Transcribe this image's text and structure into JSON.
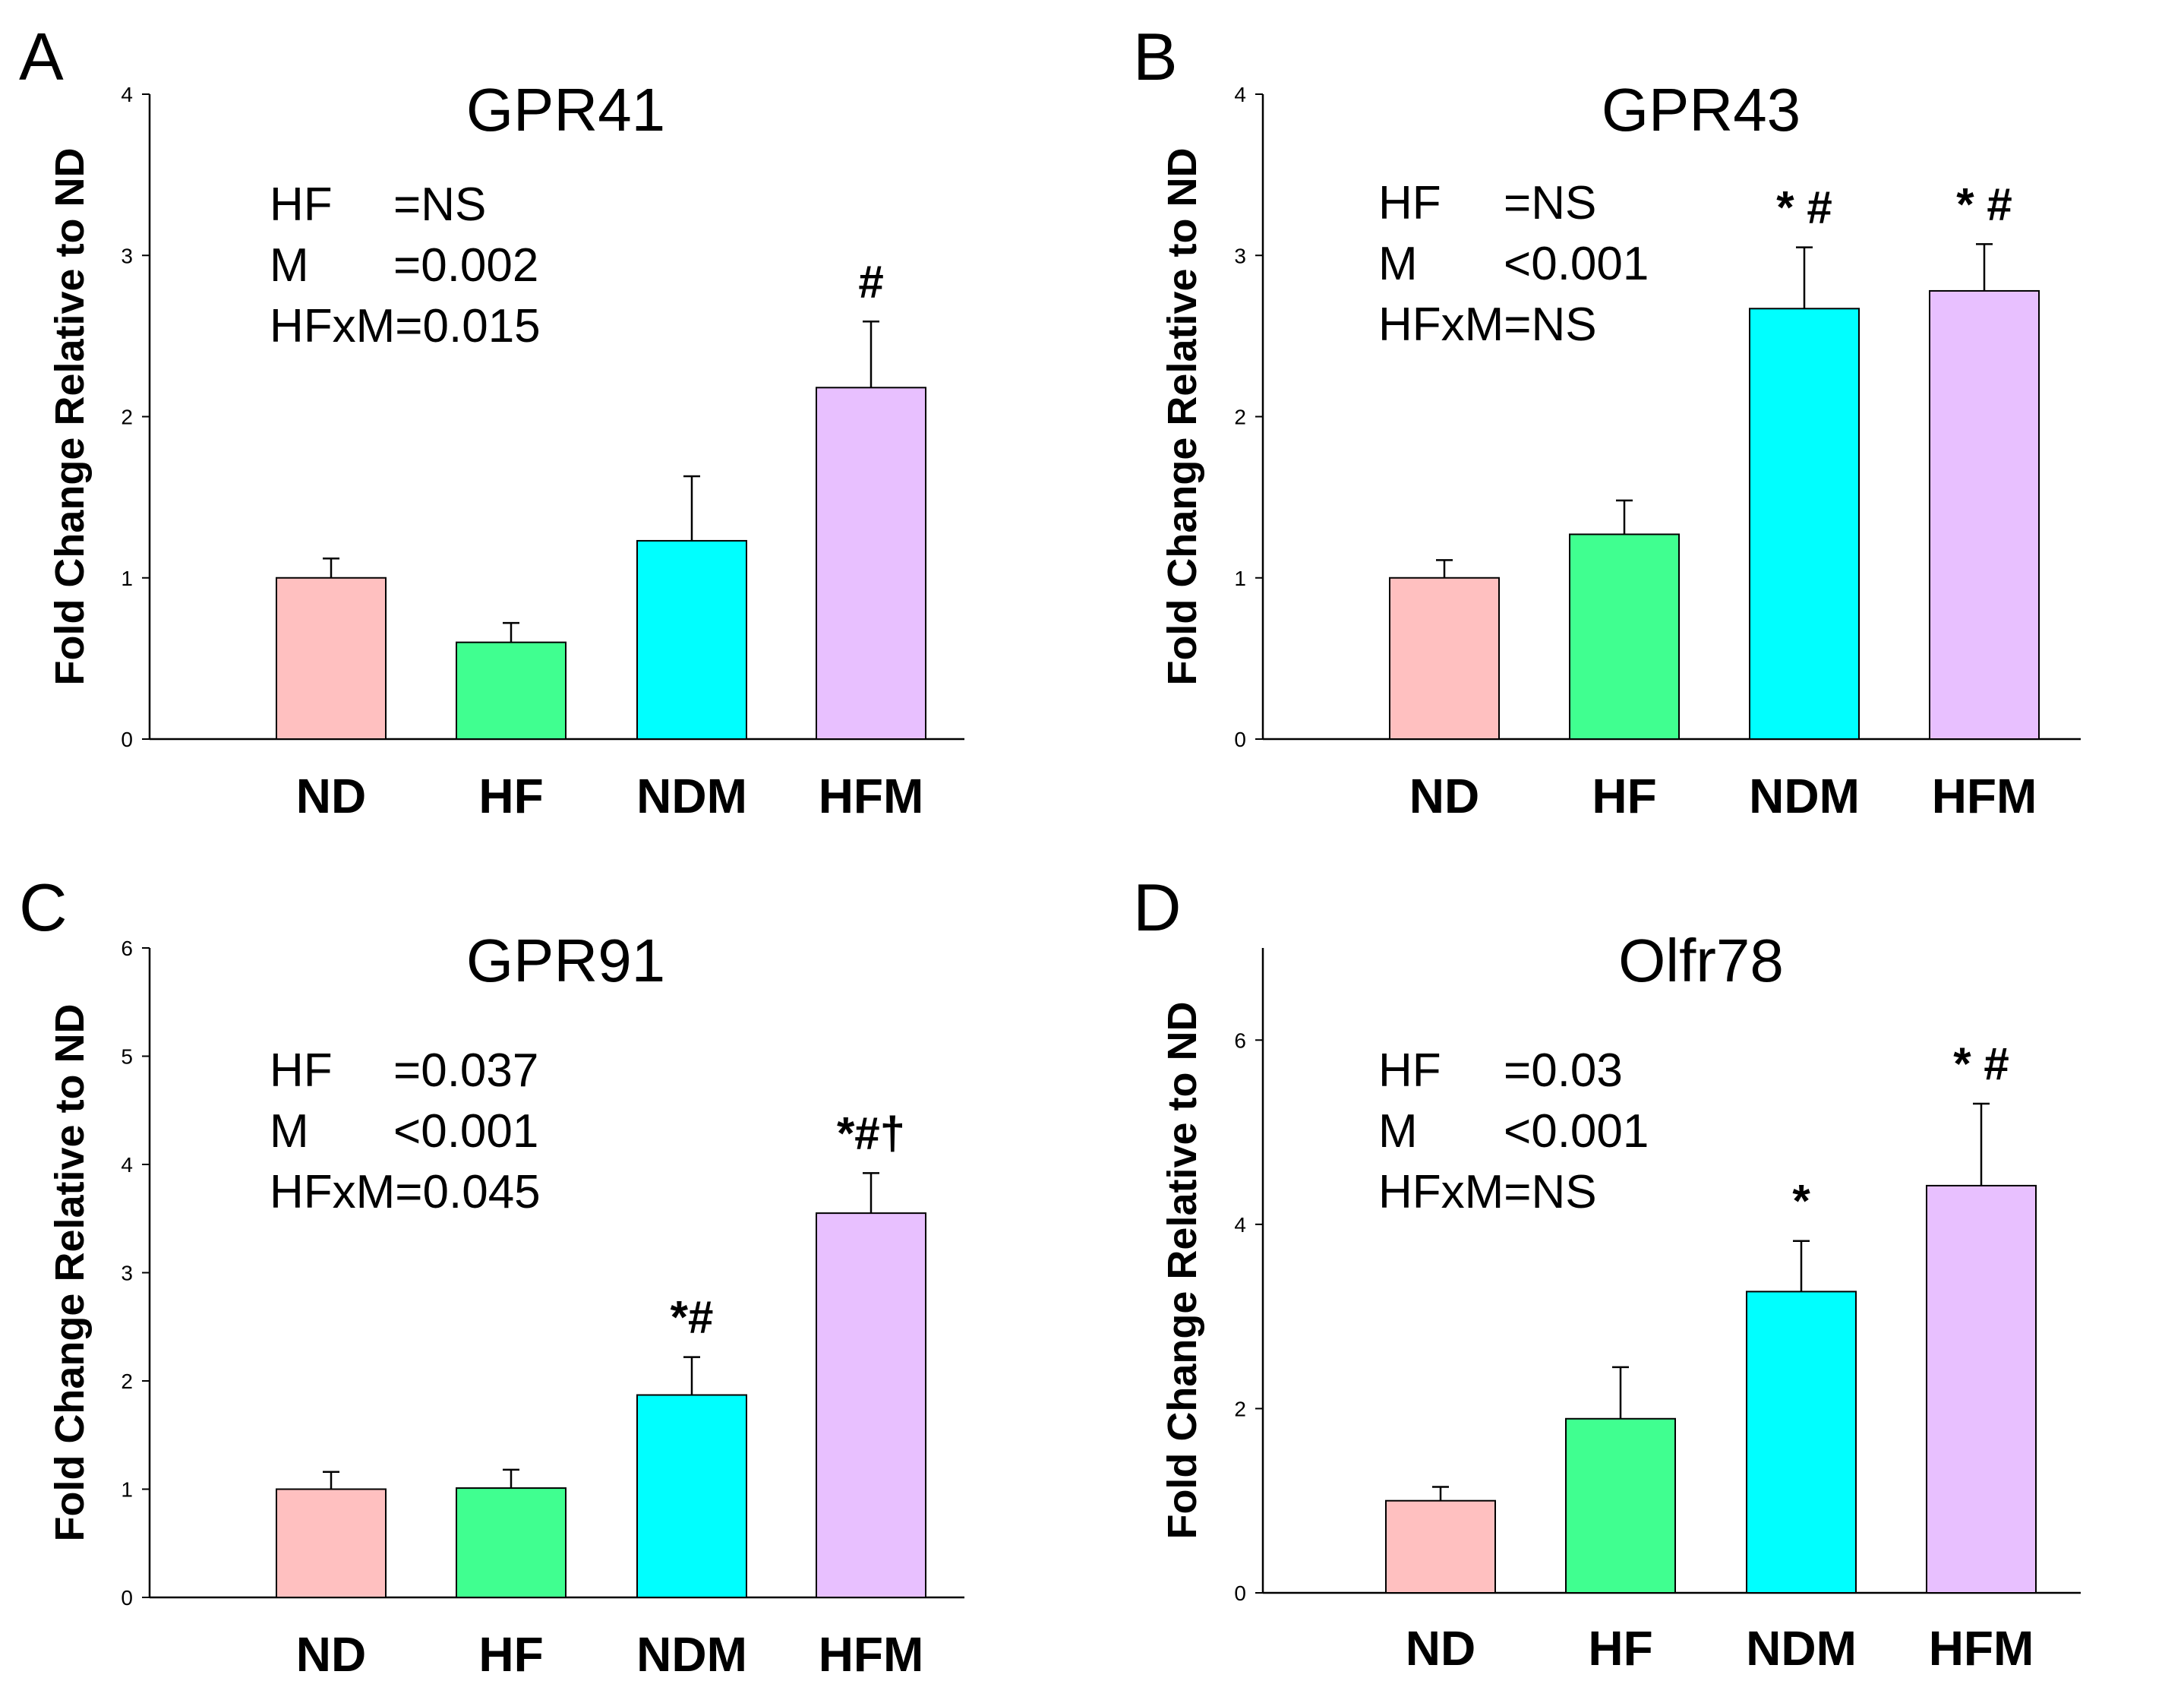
{
  "chart_data": [
    {
      "panel": "A",
      "type": "bar",
      "title": "GPR41",
      "ylabel": "Fold Change Relative to ND",
      "xlabel": "",
      "ylim": [
        0,
        4
      ],
      "yticks": [
        "0",
        "1",
        "2",
        "3",
        "4"
      ],
      "categories": [
        "ND",
        "HF",
        "NDM",
        "HFM"
      ],
      "values": [
        1.0,
        0.6,
        1.23,
        2.18
      ],
      "errors": [
        0.12,
        0.12,
        0.4,
        0.41
      ],
      "colors": [
        "#ffc0c0",
        "#40ff90",
        "#00ffff",
        "#e8c0ff"
      ],
      "stats": [
        "HF",
        "=NS",
        "M",
        "=0.002",
        "HFxM=0.015"
      ],
      "significance": [
        "",
        "",
        "",
        "#"
      ]
    },
    {
      "panel": "B",
      "type": "bar",
      "title": "GPR43",
      "ylabel": "Fold Change Relative to ND",
      "xlabel": "",
      "ylim": [
        0,
        4
      ],
      "yticks": [
        "0",
        "1",
        "2",
        "3",
        "4"
      ],
      "categories": [
        "ND",
        "HF",
        "NDM",
        "HFM"
      ],
      "values": [
        1.0,
        1.27,
        2.67,
        2.78
      ],
      "errors": [
        0.11,
        0.21,
        0.38,
        0.29
      ],
      "colors": [
        "#ffc0c0",
        "#40ff90",
        "#00ffff",
        "#e8c0ff"
      ],
      "stats": [
        "HF",
        "=NS",
        "M",
        "<0.001",
        "HFxM=NS"
      ],
      "significance": [
        "",
        "",
        "* #",
        "* #"
      ]
    },
    {
      "panel": "C",
      "type": "bar",
      "title": "GPR91",
      "ylabel": "Fold Change Relative to ND",
      "xlabel": "",
      "ylim": [
        0,
        6
      ],
      "yticks": [
        "0",
        "1",
        "2",
        "3",
        "4",
        "5",
        "6"
      ],
      "categories": [
        "ND",
        "HF",
        "NDM",
        "HFM"
      ],
      "values": [
        1.0,
        1.01,
        1.87,
        3.55
      ],
      "errors": [
        0.16,
        0.17,
        0.35,
        0.37
      ],
      "colors": [
        "#ffc0c0",
        "#40ff90",
        "#00ffff",
        "#e8c0ff"
      ],
      "stats": [
        "HF",
        "=0.037",
        "M",
        "<0.001",
        "HFxM=0.045"
      ],
      "significance": [
        "",
        "",
        "*#",
        "*#†"
      ]
    },
    {
      "panel": "D",
      "type": "bar",
      "title": "Olfr78",
      "ylabel": "Fold Change Relative to ND",
      "xlabel": "",
      "ylim": [
        0,
        7
      ],
      "yticks": [
        "0",
        "2",
        "4",
        "6"
      ],
      "categories": [
        "ND",
        "HF",
        "NDM",
        "HFM"
      ],
      "values": [
        1.0,
        1.89,
        3.27,
        4.42
      ],
      "errors": [
        0.15,
        0.56,
        0.55,
        0.89
      ],
      "colors": [
        "#ffc0c0",
        "#40ff90",
        "#00ffff",
        "#e8c0ff"
      ],
      "stats": [
        "HF",
        "=0.03",
        "M",
        "<0.001",
        "HFxM=NS"
      ],
      "significance": [
        "",
        "",
        "*",
        "* #"
      ]
    }
  ]
}
